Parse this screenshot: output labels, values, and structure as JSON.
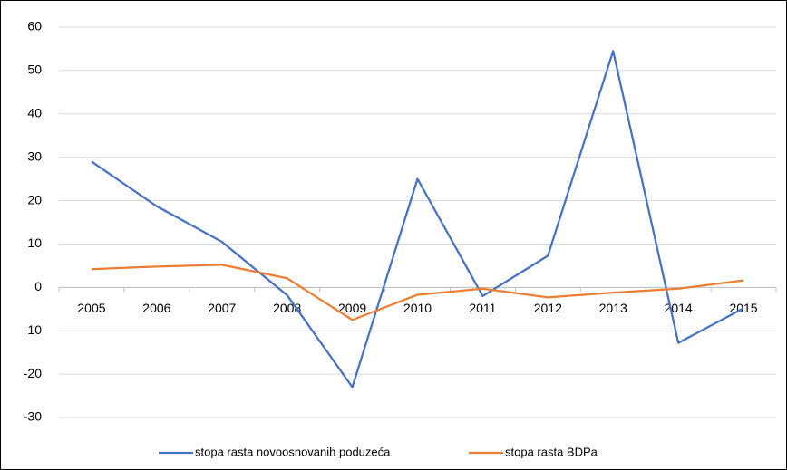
{
  "chart_data": {
    "type": "line",
    "categories": [
      "2005",
      "2006",
      "2007",
      "2008",
      "2009",
      "2010",
      "2011",
      "2012",
      "2013",
      "2014",
      "2015"
    ],
    "series": [
      {
        "name": "stopa rasta novoosnovanih poduzeća",
        "color": "#4472c4",
        "values": [
          29,
          18.7,
          10.5,
          -1.8,
          -23,
          25,
          -2,
          7.3,
          54.5,
          -12.8,
          -4.8
        ]
      },
      {
        "name": "stopa rasta BDPa",
        "color": "#ed7d31",
        "values": [
          4.2,
          4.8,
          5.2,
          2.1,
          -7.5,
          -1.7,
          -0.3,
          -2.3,
          -1.2,
          -0.3,
          1.6
        ]
      }
    ],
    "ylim": [
      -30,
      60
    ],
    "yticks": [
      -30,
      -20,
      -10,
      0,
      10,
      20,
      30,
      40,
      50,
      60
    ],
    "grid": true,
    "legend": "bottom"
  }
}
